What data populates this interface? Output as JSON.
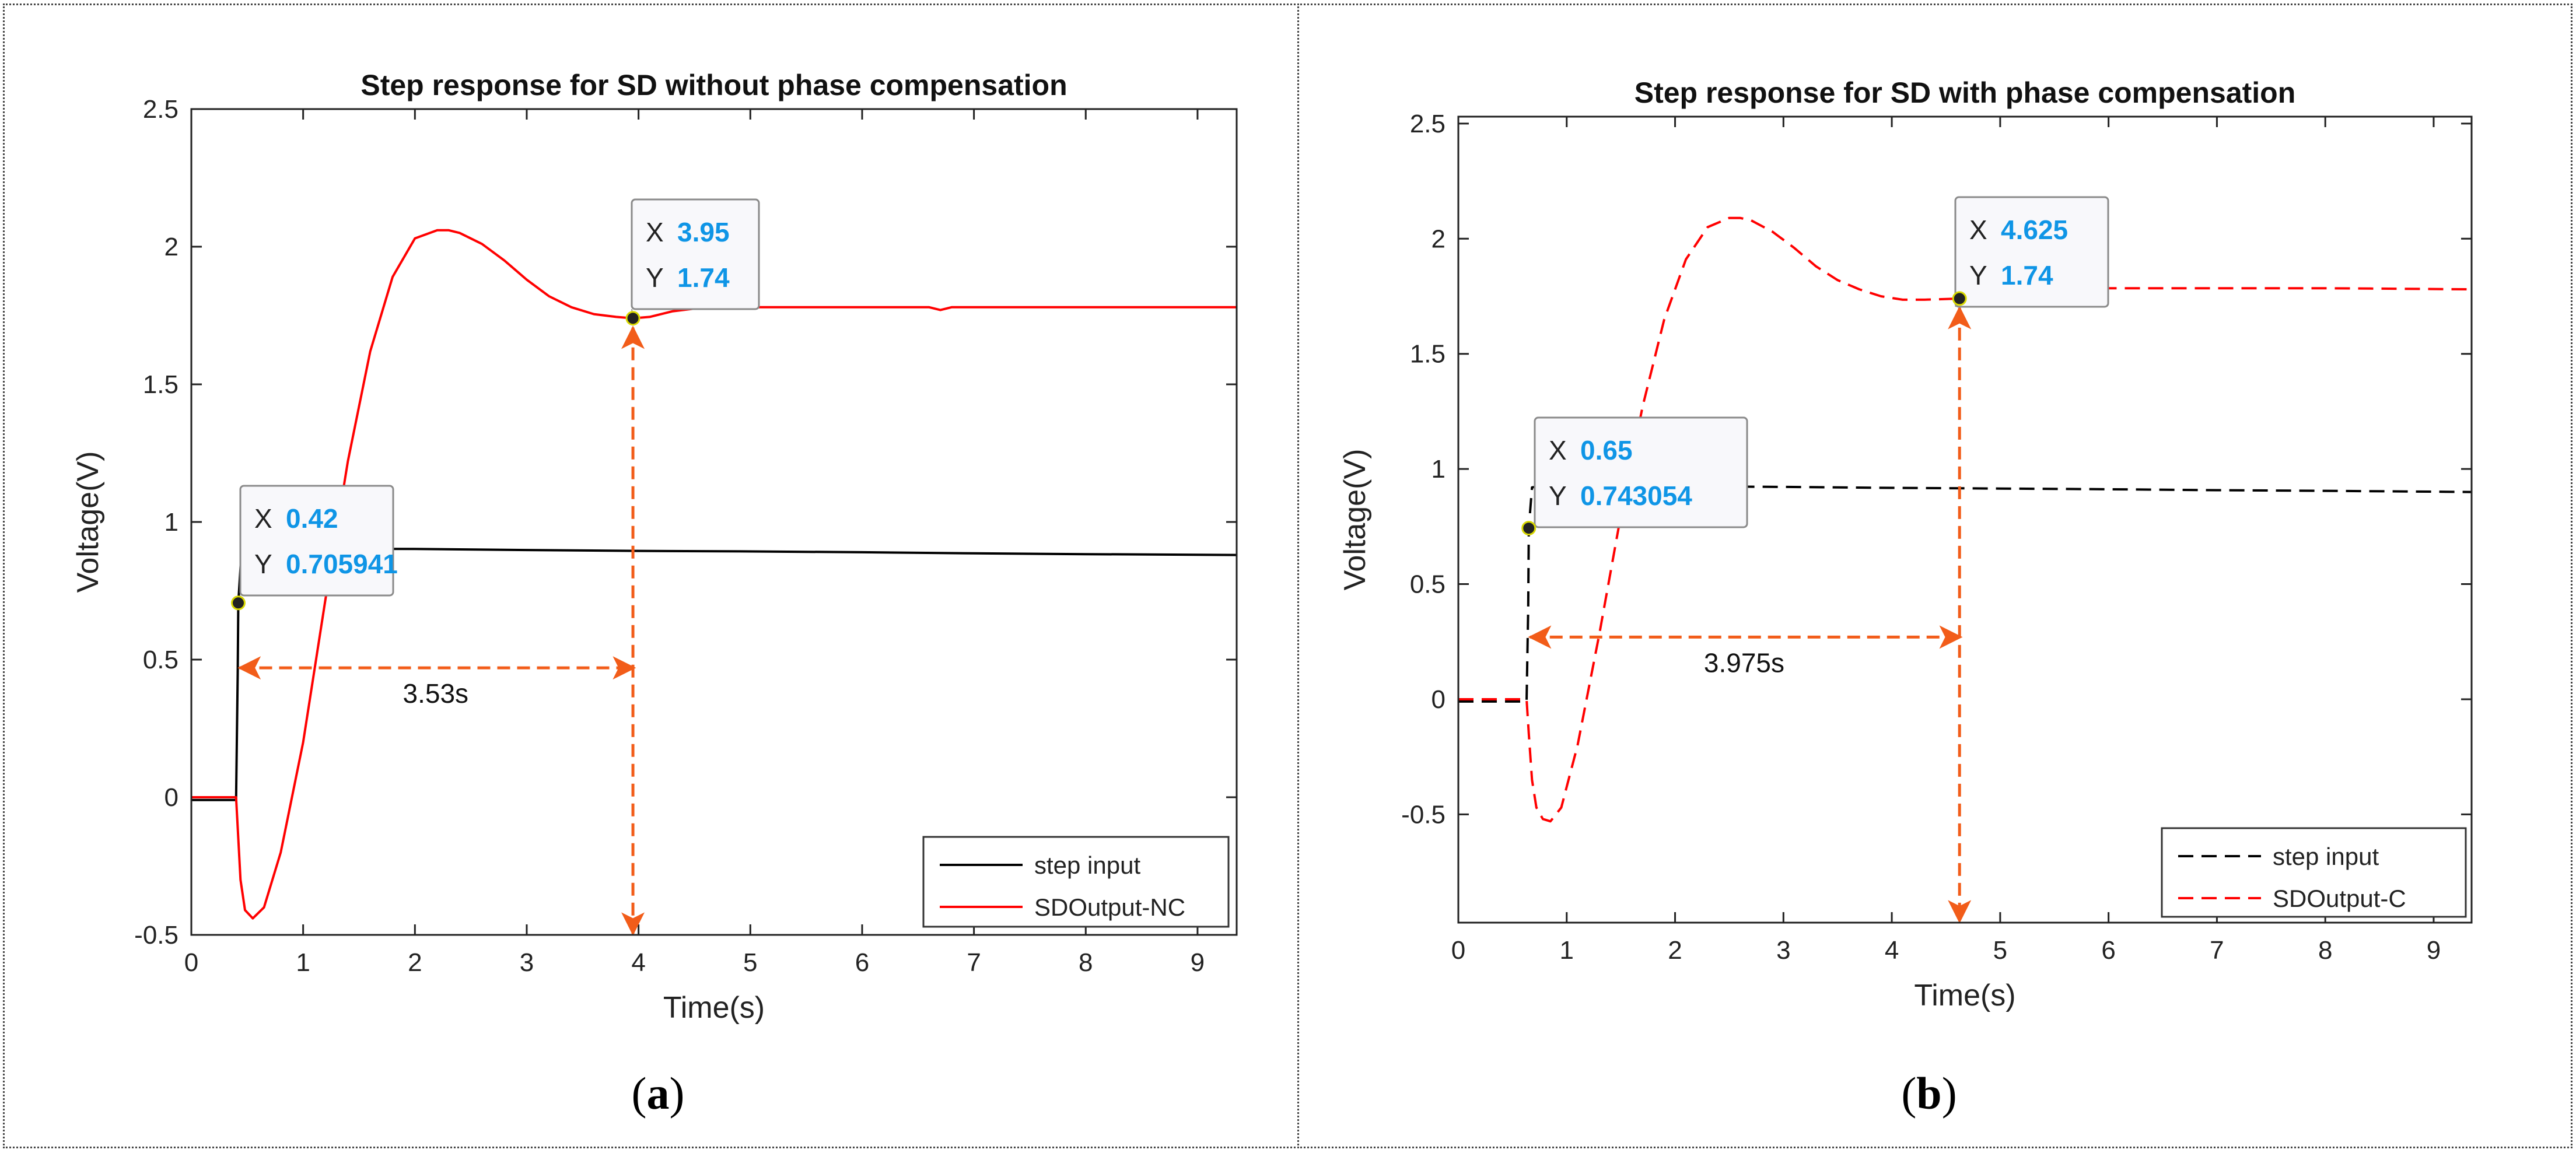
{
  "panels": [
    {
      "label": "a"
    },
    {
      "label": "b"
    }
  ],
  "chart_data": [
    {
      "type": "line",
      "title": "Step response for SD without phase compensation",
      "xlabel": "Time(s)",
      "ylabel": "Voltage(V)",
      "xlim": [
        0,
        9.35
      ],
      "ylim": [
        -0.5,
        2.5
      ],
      "xticks": [
        "0",
        "1",
        "2",
        "3",
        "4",
        "5",
        "6",
        "7",
        "8",
        "9"
      ],
      "yticks": [
        "-0.5",
        "0",
        "0.5",
        "1",
        "1.5",
        "2",
        "2.5"
      ],
      "legend_position": "bottom-right",
      "series": [
        {
          "name": "step input",
          "color": "#000000",
          "dashed": false,
          "x": [
            0,
            0.4,
            0.415,
            0.42,
            0.45,
            0.6,
            1.0,
            2.0,
            3.0,
            4.0,
            5.0,
            6.0,
            7.0,
            8.0,
            9.35
          ],
          "y": [
            -0.01,
            -0.01,
            0.45,
            0.706,
            0.9,
            0.903,
            0.903,
            0.902,
            0.898,
            0.895,
            0.893,
            0.89,
            0.886,
            0.883,
            0.88
          ]
        },
        {
          "name": "SDOutput-NC",
          "color": "#ff0000",
          "dashed": false,
          "x": [
            0,
            0.4,
            0.42,
            0.44,
            0.48,
            0.55,
            0.65,
            0.8,
            1.0,
            1.2,
            1.4,
            1.6,
            1.8,
            2.0,
            2.2,
            2.3,
            2.4,
            2.6,
            2.8,
            3.0,
            3.2,
            3.4,
            3.6,
            3.8,
            3.95,
            4.1,
            4.3,
            4.6,
            5.0,
            6.0,
            6.6,
            6.7,
            6.8,
            7.0,
            8.0,
            9.35
          ],
          "y": [
            0.0,
            0.0,
            -0.15,
            -0.3,
            -0.41,
            -0.44,
            -0.4,
            -0.2,
            0.2,
            0.72,
            1.22,
            1.62,
            1.89,
            2.03,
            2.06,
            2.06,
            2.05,
            2.01,
            1.95,
            1.88,
            1.82,
            1.78,
            1.755,
            1.745,
            1.74,
            1.745,
            1.765,
            1.78,
            1.78,
            1.78,
            1.78,
            1.77,
            1.78,
            1.78,
            1.78,
            1.78
          ]
        }
      ],
      "datatips": [
        {
          "x_label": "X",
          "x_value": "0.42",
          "y_label": "Y",
          "y_value": "0.705941",
          "x": 0.42,
          "y": 0.705941
        },
        {
          "x_label": "X",
          "x_value": "3.95",
          "y_label": "Y",
          "y_value": "1.74",
          "x": 3.95,
          "y": 1.74
        }
      ],
      "annotation": {
        "text": "3.53s",
        "from": 0.42,
        "to": 3.95,
        "at_y": 0.47
      }
    },
    {
      "type": "line",
      "title": "Step response for SD with phase compensation",
      "xlabel": "Time(s)",
      "ylabel": "Voltage(V)",
      "xlim": [
        0,
        9.35
      ],
      "ylim": [
        -0.97,
        2.53
      ],
      "xticks": [
        "0",
        "1",
        "2",
        "3",
        "4",
        "5",
        "6",
        "7",
        "8",
        "9"
      ],
      "yticks": [
        "-0.5",
        "0",
        "0.5",
        "1",
        "1.5",
        "2",
        "2.5"
      ],
      "legend_position": "bottom-right",
      "series": [
        {
          "name": "step input",
          "color": "#000000",
          "dashed": true,
          "x": [
            0,
            0.63,
            0.645,
            0.65,
            0.68,
            0.8,
            1.0,
            2.0,
            3.0,
            4.0,
            5.0,
            6.0,
            7.0,
            8.0,
            9.35
          ],
          "y": [
            -0.01,
            -0.01,
            0.4,
            0.743,
            0.92,
            0.928,
            0.928,
            0.925,
            0.922,
            0.918,
            0.915,
            0.912,
            0.908,
            0.905,
            0.9
          ]
        },
        {
          "name": "SDOutput-C",
          "color": "#ff0000",
          "dashed": true,
          "x": [
            0,
            0.63,
            0.65,
            0.68,
            0.72,
            0.78,
            0.85,
            0.95,
            1.1,
            1.3,
            1.5,
            1.7,
            1.9,
            2.1,
            2.3,
            2.5,
            2.6,
            2.7,
            2.9,
            3.1,
            3.3,
            3.5,
            3.7,
            3.9,
            4.1,
            4.3,
            4.625,
            4.9,
            5.2,
            6.0,
            7.0,
            8.0,
            9.35
          ],
          "y": [
            0.0,
            0.0,
            -0.15,
            -0.35,
            -0.47,
            -0.52,
            -0.53,
            -0.47,
            -0.2,
            0.28,
            0.8,
            1.27,
            1.65,
            1.91,
            2.05,
            2.09,
            2.09,
            2.08,
            2.03,
            1.96,
            1.88,
            1.82,
            1.78,
            1.75,
            1.735,
            1.735,
            1.74,
            1.765,
            1.785,
            1.785,
            1.785,
            1.785,
            1.78
          ]
        }
      ],
      "datatips": [
        {
          "x_label": "X",
          "x_value": "0.65",
          "y_label": "Y",
          "y_value": "0.743054",
          "x": 0.65,
          "y": 0.743054
        },
        {
          "x_label": "X",
          "x_value": "4.625",
          "y_label": "Y",
          "y_value": "1.74",
          "x": 4.625,
          "y": 1.74
        }
      ],
      "annotation": {
        "text": "3.975s",
        "from": 0.65,
        "to": 4.625,
        "at_y": 0.27
      }
    }
  ],
  "colors": {
    "arrow": "#f25c19",
    "tip_value": "#0f95e6",
    "tip_bg": "#f8f8fb"
  }
}
